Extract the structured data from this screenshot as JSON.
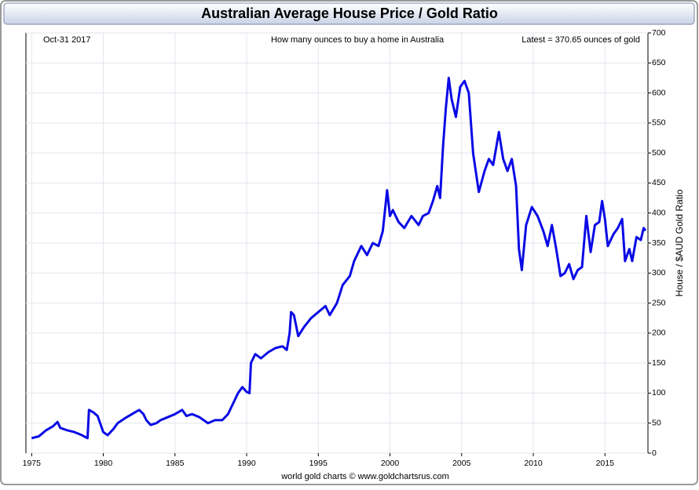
{
  "chart_data": {
    "type": "line",
    "title": "Australian Average House Price / Gold Ratio",
    "date_label": "Oct-31  2017",
    "subtitle": "How many ounces to buy a home in Australia",
    "annotation": "Latest = 370.65 ounces of gold",
    "y_axis_label": "House / $AUD Gold Ratio",
    "footer": "world gold charts © www.goldchartsrus.com",
    "color": "#0a0ae6",
    "grid": true,
    "xlim": [
      1974.6,
      2018
    ],
    "ylim": [
      0,
      700
    ],
    "xticks": [
      1975,
      1980,
      1985,
      1990,
      1995,
      2000,
      2005,
      2010,
      2015
    ],
    "yticks": [
      0,
      50,
      100,
      150,
      200,
      250,
      300,
      350,
      400,
      450,
      500,
      550,
      600,
      650,
      700
    ],
    "x": [
      1975.0,
      1975.5,
      1976.0,
      1976.5,
      1976.8,
      1977.0,
      1977.5,
      1978.0,
      1978.5,
      1978.9,
      1979.0,
      1979.3,
      1979.6,
      1980.0,
      1980.3,
      1980.7,
      1981.0,
      1981.5,
      1982.0,
      1982.5,
      1982.8,
      1983.0,
      1983.3,
      1983.7,
      1984.0,
      1984.5,
      1985.0,
      1985.5,
      1985.8,
      1986.2,
      1986.7,
      1987.0,
      1987.3,
      1987.8,
      1988.3,
      1988.7,
      1989.0,
      1989.4,
      1989.7,
      1990.0,
      1990.2,
      1990.3,
      1990.6,
      1991.0,
      1991.5,
      1992.0,
      1992.5,
      1992.8,
      1993.0,
      1993.1,
      1993.3,
      1993.6,
      1994.0,
      1994.5,
      1995.0,
      1995.5,
      1995.8,
      1996.3,
      1996.7,
      1997.2,
      1997.5,
      1998.0,
      1998.4,
      1998.8,
      1999.2,
      1999.5,
      1999.8,
      2000.0,
      2000.2,
      2000.6,
      2001.0,
      2001.5,
      2002.0,
      2002.3,
      2002.7,
      2003.0,
      2003.3,
      2003.5,
      2003.7,
      2003.9,
      2004.1,
      2004.3,
      2004.6,
      2004.9,
      2005.2,
      2005.5,
      2005.8,
      2006.2,
      2006.6,
      2006.9,
      2007.2,
      2007.6,
      2007.9,
      2008.2,
      2008.5,
      2008.8,
      2009.0,
      2009.2,
      2009.5,
      2009.9,
      2010.3,
      2010.7,
      2011.0,
      2011.3,
      2011.6,
      2011.9,
      2012.2,
      2012.5,
      2012.8,
      2013.1,
      2013.4,
      2013.7,
      2014.0,
      2014.3,
      2014.6,
      2014.8,
      2015.0,
      2015.2,
      2015.6,
      2015.9,
      2016.2,
      2016.4,
      2016.7,
      2016.9,
      2017.2,
      2017.5,
      2017.7,
      2017.83
    ],
    "values": [
      25,
      28,
      38,
      45,
      52,
      42,
      38,
      35,
      30,
      25,
      72,
      68,
      62,
      35,
      30,
      40,
      50,
      58,
      65,
      72,
      65,
      55,
      47,
      50,
      55,
      60,
      65,
      72,
      62,
      65,
      60,
      55,
      50,
      55,
      55,
      65,
      80,
      100,
      110,
      102,
      100,
      150,
      165,
      158,
      168,
      175,
      178,
      172,
      200,
      235,
      230,
      195,
      210,
      225,
      235,
      245,
      230,
      250,
      280,
      295,
      320,
      345,
      330,
      350,
      345,
      370,
      438,
      395,
      405,
      385,
      375,
      395,
      380,
      395,
      400,
      420,
      445,
      425,
      510,
      575,
      625,
      590,
      560,
      610,
      620,
      600,
      500,
      435,
      470,
      490,
      480,
      535,
      490,
      470,
      490,
      445,
      340,
      305,
      380,
      410,
      395,
      370,
      345,
      380,
      340,
      295,
      300,
      315,
      290,
      305,
      310,
      395,
      335,
      380,
      385,
      420,
      390,
      345,
      365,
      375,
      390,
      320,
      340,
      320,
      360,
      355,
      375,
      370.65
    ]
  }
}
